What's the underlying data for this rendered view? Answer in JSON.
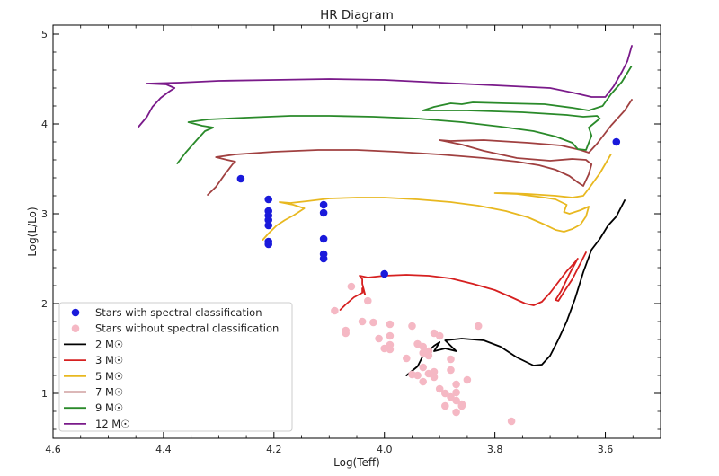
{
  "chart_data": {
    "type": "scatter",
    "title": "HR Diagram",
    "xlabel": "Log(Teff)",
    "ylabel": "Log(L/Lo)",
    "xlim": [
      4.6,
      3.5
    ],
    "ylim": [
      0.5,
      5.1
    ],
    "x_inverted": true,
    "x_ticks": [
      4.6,
      4.4,
      4.2,
      4.0,
      3.8,
      3.6
    ],
    "x_tick_labels": [
      "4.6",
      "4.4",
      "4.2",
      "4.0",
      "3.8",
      "3.6"
    ],
    "y_ticks": [
      1,
      2,
      3,
      4,
      5
    ],
    "y_tick_labels": [
      "1",
      "2",
      "3",
      "4",
      "5"
    ],
    "grid": false,
    "legend_position": "lower-left",
    "scatter_series": [
      {
        "name": "Stars with spectral classification",
        "color": "#1a1adb",
        "points": [
          [
            4.26,
            3.39
          ],
          [
            4.21,
            3.16
          ],
          [
            4.21,
            3.03
          ],
          [
            4.21,
            2.98
          ],
          [
            4.21,
            2.93
          ],
          [
            4.21,
            2.87
          ],
          [
            4.21,
            2.69
          ],
          [
            4.21,
            2.66
          ],
          [
            4.11,
            3.1
          ],
          [
            4.11,
            3.01
          ],
          [
            4.11,
            2.72
          ],
          [
            4.11,
            2.55
          ],
          [
            4.11,
            2.5
          ],
          [
            4.0,
            2.33
          ],
          [
            3.58,
            3.8
          ]
        ]
      },
      {
        "name": "Stars without spectral classification",
        "color": "#f5b8c4",
        "points": [
          [
            4.06,
            2.19
          ],
          [
            4.09,
            1.92
          ],
          [
            4.07,
            1.7
          ],
          [
            4.07,
            1.67
          ],
          [
            4.04,
            1.8
          ],
          [
            4.03,
            2.03
          ],
          [
            4.02,
            1.79
          ],
          [
            4.01,
            1.61
          ],
          [
            4.0,
            1.5
          ],
          [
            3.99,
            1.77
          ],
          [
            3.99,
            1.64
          ],
          [
            3.99,
            1.54
          ],
          [
            3.99,
            1.49
          ],
          [
            3.95,
            1.75
          ],
          [
            3.96,
            1.39
          ],
          [
            3.94,
            1.55
          ],
          [
            3.93,
            1.52
          ],
          [
            3.93,
            1.45
          ],
          [
            3.92,
            1.47
          ],
          [
            3.91,
            1.67
          ],
          [
            3.9,
            1.64
          ],
          [
            3.93,
            1.29
          ],
          [
            3.92,
            1.22
          ],
          [
            3.91,
            1.18
          ],
          [
            3.94,
            1.2
          ],
          [
            3.93,
            1.13
          ],
          [
            3.91,
            1.24
          ],
          [
            3.9,
            1.05
          ],
          [
            3.89,
            1.0
          ],
          [
            3.88,
            0.96
          ],
          [
            3.87,
            1.1
          ],
          [
            3.87,
            1.01
          ],
          [
            3.87,
            0.92
          ],
          [
            3.86,
            0.88
          ],
          [
            3.86,
            0.86
          ],
          [
            3.88,
            1.26
          ],
          [
            3.88,
            1.38
          ],
          [
            3.85,
            1.15
          ],
          [
            3.83,
            1.75
          ],
          [
            3.77,
            0.69
          ],
          [
            3.87,
            0.79
          ],
          [
            3.89,
            0.86
          ],
          [
            3.92,
            1.42
          ],
          [
            3.95,
            1.21
          ]
        ]
      }
    ],
    "track_series": [
      {
        "name": "2 M☉",
        "color": "#000000",
        "points": [
          [
            3.96,
            1.2
          ],
          [
            3.94,
            1.3
          ],
          [
            3.93,
            1.42
          ],
          [
            3.91,
            1.53
          ],
          [
            3.9,
            1.57
          ],
          [
            3.91,
            1.47
          ],
          [
            3.89,
            1.5
          ],
          [
            3.87,
            1.47
          ],
          [
            3.89,
            1.59
          ],
          [
            3.86,
            1.61
          ],
          [
            3.82,
            1.59
          ],
          [
            3.79,
            1.52
          ],
          [
            3.76,
            1.4
          ],
          [
            3.73,
            1.31
          ],
          [
            3.715,
            1.32
          ],
          [
            3.7,
            1.42
          ],
          [
            3.685,
            1.6
          ],
          [
            3.67,
            1.8
          ],
          [
            3.655,
            2.05
          ],
          [
            3.64,
            2.35
          ],
          [
            3.625,
            2.6
          ],
          [
            3.61,
            2.72
          ],
          [
            3.595,
            2.87
          ],
          [
            3.58,
            2.97
          ],
          [
            3.565,
            3.15
          ]
        ]
      },
      {
        "name": "3 M☉",
        "color": "#d62020",
        "points": [
          [
            4.08,
            1.93
          ],
          [
            4.07,
            1.99
          ],
          [
            4.055,
            2.07
          ],
          [
            4.04,
            2.12
          ],
          [
            4.04,
            2.17
          ],
          [
            4.035,
            2.1
          ],
          [
            4.04,
            2.22
          ],
          [
            4.04,
            2.27
          ],
          [
            4.045,
            2.31
          ],
          [
            4.03,
            2.29
          ],
          [
            4.0,
            2.31
          ],
          [
            3.96,
            2.32
          ],
          [
            3.92,
            2.31
          ],
          [
            3.88,
            2.28
          ],
          [
            3.84,
            2.22
          ],
          [
            3.8,
            2.15
          ],
          [
            3.77,
            2.07
          ],
          [
            3.745,
            2.0
          ],
          [
            3.73,
            1.98
          ],
          [
            3.715,
            2.02
          ],
          [
            3.7,
            2.12
          ],
          [
            3.685,
            2.24
          ],
          [
            3.67,
            2.36
          ],
          [
            3.655,
            2.46
          ],
          [
            3.65,
            2.5
          ],
          [
            3.665,
            2.33
          ],
          [
            3.68,
            2.14
          ],
          [
            3.69,
            2.04
          ],
          [
            3.685,
            2.03
          ],
          [
            3.675,
            2.13
          ],
          [
            3.66,
            2.27
          ],
          [
            3.645,
            2.45
          ],
          [
            3.635,
            2.57
          ]
        ]
      },
      {
        "name": "5 M☉",
        "color": "#e8b820",
        "points": [
          [
            4.22,
            2.71
          ],
          [
            4.21,
            2.78
          ],
          [
            4.195,
            2.87
          ],
          [
            4.18,
            2.93
          ],
          [
            4.165,
            2.98
          ],
          [
            4.155,
            3.02
          ],
          [
            4.145,
            3.06
          ],
          [
            4.165,
            3.1
          ],
          [
            4.19,
            3.13
          ],
          [
            4.17,
            3.12
          ],
          [
            4.14,
            3.14
          ],
          [
            4.1,
            3.17
          ],
          [
            4.05,
            3.18
          ],
          [
            4.0,
            3.18
          ],
          [
            3.94,
            3.16
          ],
          [
            3.88,
            3.13
          ],
          [
            3.83,
            3.09
          ],
          [
            3.78,
            3.03
          ],
          [
            3.74,
            2.96
          ],
          [
            3.71,
            2.88
          ],
          [
            3.69,
            2.82
          ],
          [
            3.675,
            2.8
          ],
          [
            3.66,
            2.83
          ],
          [
            3.645,
            2.88
          ],
          [
            3.635,
            2.97
          ],
          [
            3.63,
            3.08
          ],
          [
            3.645,
            3.04
          ],
          [
            3.665,
            3.0
          ],
          [
            3.675,
            3.02
          ],
          [
            3.67,
            3.1
          ],
          [
            3.69,
            3.16
          ],
          [
            3.71,
            3.18
          ],
          [
            3.76,
            3.22
          ],
          [
            3.8,
            3.23
          ],
          [
            3.78,
            3.23
          ],
          [
            3.74,
            3.22
          ],
          [
            3.69,
            3.2
          ],
          [
            3.66,
            3.18
          ],
          [
            3.64,
            3.2
          ],
          [
            3.63,
            3.28
          ],
          [
            3.61,
            3.45
          ],
          [
            3.59,
            3.66
          ]
        ]
      },
      {
        "name": "7 M☉",
        "color": "#a04040",
        "points": [
          [
            4.32,
            3.21
          ],
          [
            4.305,
            3.3
          ],
          [
            4.29,
            3.43
          ],
          [
            4.275,
            3.55
          ],
          [
            4.27,
            3.58
          ],
          [
            4.285,
            3.6
          ],
          [
            4.305,
            3.63
          ],
          [
            4.27,
            3.66
          ],
          [
            4.2,
            3.69
          ],
          [
            4.12,
            3.71
          ],
          [
            4.05,
            3.71
          ],
          [
            3.98,
            3.69
          ],
          [
            3.9,
            3.66
          ],
          [
            3.82,
            3.62
          ],
          [
            3.76,
            3.58
          ],
          [
            3.72,
            3.54
          ],
          [
            3.69,
            3.49
          ],
          [
            3.665,
            3.42
          ],
          [
            3.65,
            3.35
          ],
          [
            3.64,
            3.31
          ],
          [
            3.63,
            3.44
          ],
          [
            3.625,
            3.55
          ],
          [
            3.635,
            3.6
          ],
          [
            3.66,
            3.61
          ],
          [
            3.7,
            3.59
          ],
          [
            3.76,
            3.62
          ],
          [
            3.82,
            3.7
          ],
          [
            3.86,
            3.77
          ],
          [
            3.9,
            3.82
          ],
          [
            3.88,
            3.81
          ],
          [
            3.82,
            3.82
          ],
          [
            3.74,
            3.79
          ],
          [
            3.68,
            3.76
          ],
          [
            3.645,
            3.71
          ],
          [
            3.63,
            3.68
          ],
          [
            3.615,
            3.78
          ],
          [
            3.59,
            3.98
          ],
          [
            3.565,
            4.15
          ],
          [
            3.552,
            4.27
          ]
        ]
      },
      {
        "name": "9 M☉",
        "color": "#2a8a2a",
        "points": [
          [
            4.375,
            3.56
          ],
          [
            4.36,
            3.68
          ],
          [
            4.34,
            3.82
          ],
          [
            4.325,
            3.92
          ],
          [
            4.31,
            3.96
          ],
          [
            4.33,
            3.98
          ],
          [
            4.355,
            4.02
          ],
          [
            4.32,
            4.05
          ],
          [
            4.25,
            4.07
          ],
          [
            4.17,
            4.09
          ],
          [
            4.1,
            4.09
          ],
          [
            4.02,
            4.08
          ],
          [
            3.94,
            4.06
          ],
          [
            3.86,
            4.02
          ],
          [
            3.79,
            3.97
          ],
          [
            3.73,
            3.92
          ],
          [
            3.69,
            3.86
          ],
          [
            3.66,
            3.79
          ],
          [
            3.65,
            3.72
          ],
          [
            3.635,
            3.71
          ],
          [
            3.63,
            3.79
          ],
          [
            3.625,
            3.87
          ],
          [
            3.63,
            3.96
          ],
          [
            3.61,
            4.06
          ],
          [
            3.615,
            4.09
          ],
          [
            3.64,
            4.08
          ],
          [
            3.67,
            4.1
          ],
          [
            3.75,
            4.13
          ],
          [
            3.85,
            4.15
          ],
          [
            3.93,
            4.15
          ],
          [
            3.91,
            4.19
          ],
          [
            3.88,
            4.23
          ],
          [
            3.86,
            4.22
          ],
          [
            3.84,
            4.24
          ],
          [
            3.78,
            4.23
          ],
          [
            3.71,
            4.22
          ],
          [
            3.66,
            4.18
          ],
          [
            3.63,
            4.15
          ],
          [
            3.605,
            4.2
          ],
          [
            3.59,
            4.33
          ],
          [
            3.57,
            4.47
          ],
          [
            3.553,
            4.64
          ]
        ]
      },
      {
        "name": "12 M☉",
        "color": "#7a1a8a",
        "points": [
          [
            4.445,
            3.97
          ],
          [
            4.43,
            4.08
          ],
          [
            4.42,
            4.19
          ],
          [
            4.405,
            4.29
          ],
          [
            4.39,
            4.36
          ],
          [
            4.38,
            4.4
          ],
          [
            4.395,
            4.44
          ],
          [
            4.43,
            4.45
          ],
          [
            4.37,
            4.46
          ],
          [
            4.3,
            4.48
          ],
          [
            4.2,
            4.49
          ],
          [
            4.1,
            4.5
          ],
          [
            4.0,
            4.49
          ],
          [
            3.9,
            4.46
          ],
          [
            3.8,
            4.43
          ],
          [
            3.7,
            4.4
          ],
          [
            3.66,
            4.35
          ],
          [
            3.625,
            4.3
          ],
          [
            3.6,
            4.3
          ],
          [
            3.585,
            4.42
          ],
          [
            3.57,
            4.58
          ],
          [
            3.56,
            4.7
          ],
          [
            3.552,
            4.87
          ]
        ]
      }
    ]
  }
}
